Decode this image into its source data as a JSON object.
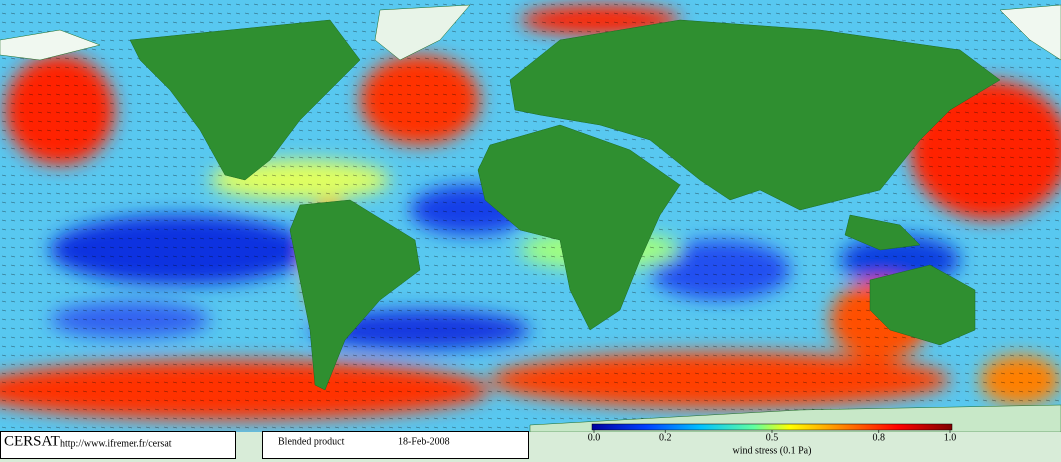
{
  "footer": {
    "logo": "CERSAT",
    "url": "http://www.ifremer.fr/cersat",
    "product": "Blended product",
    "date": "18-Feb-2008"
  },
  "colorbar": {
    "label": "wind stress (0.1 Pa)",
    "lim": [
      0,
      1
    ],
    "ticks": [
      {
        "value": 0,
        "label": "0.0"
      },
      0.2,
      0.5,
      0.8,
      {
        "value": 1,
        "label": "1.0"
      }
    ]
  }
}
